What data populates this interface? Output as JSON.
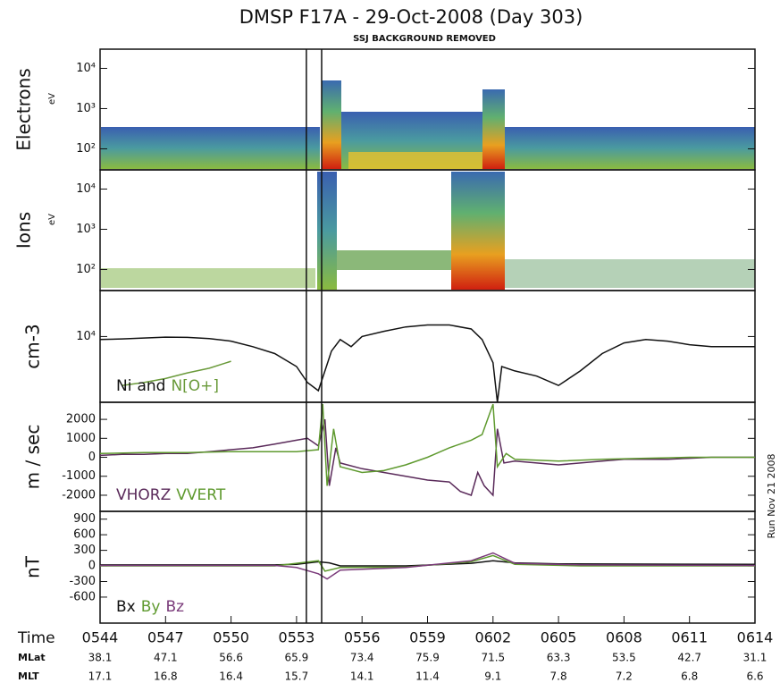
{
  "chart_data": {
    "type": "panels",
    "title": "DMSP F17A - 29-Oct-2008 (Day 303)",
    "subtitle": "SSJ BACKGROUND REMOVED",
    "side_note": "Run Nov 21 2008",
    "xlim": [
      344,
      374
    ],
    "xticks": [
      {
        "value": 344,
        "label": "0544"
      },
      {
        "value": 347,
        "label": "0547"
      },
      {
        "value": 350,
        "label": "0550"
      },
      {
        "value": 353,
        "label": "0553"
      },
      {
        "value": 356,
        "label": "0556"
      },
      {
        "value": 359,
        "label": "0559"
      },
      {
        "value": 362,
        "label": "0602"
      },
      {
        "value": 365,
        "label": "0605"
      },
      {
        "value": 368,
        "label": "0608"
      },
      {
        "value": 371,
        "label": "0611"
      },
      {
        "value": 374,
        "label": "0614"
      }
    ],
    "row_labels": [
      "Time",
      "MLat",
      "MLT"
    ],
    "mlat": [
      "38.1",
      "47.1",
      "56.6",
      "65.9",
      "73.4",
      "75.9",
      "71.5",
      "63.3",
      "53.5",
      "42.7",
      "31.1"
    ],
    "mlt": [
      "17.1",
      "16.8",
      "16.4",
      "15.7",
      "14.1",
      "11.4",
      "9.1",
      "7.8",
      "7.2",
      "6.8",
      "6.6"
    ],
    "vlines": [
      353.45,
      354.15
    ],
    "panels": [
      {
        "type": "spectrogram",
        "ylabel": "Electrons",
        "unit": "eV",
        "log": true,
        "ylim": [
          30,
          30000
        ],
        "yticks": [
          {
            "value": 100,
            "label": "10²"
          },
          {
            "value": 1000,
            "label": "10³"
          },
          {
            "value": 10000,
            "label": "10⁴"
          }
        ]
      },
      {
        "type": "spectrogram",
        "ylabel": "Ions",
        "unit": "eV",
        "log": true,
        "ylim": [
          30,
          30000
        ],
        "yticks": [
          {
            "value": 100,
            "label": "10²"
          },
          {
            "value": 1000,
            "label": "10³"
          },
          {
            "value": 10000,
            "label": "10⁴"
          }
        ]
      },
      {
        "type": "line",
        "ylabel": "cm-3",
        "log": true,
        "ylim": [
          1000,
          50000
        ],
        "yticks": [
          {
            "value": 10000,
            "label": "10⁴"
          }
        ],
        "legend_joiner": "and",
        "series": [
          {
            "name": "Ni",
            "color": "#111111",
            "x": [
              344,
              345,
              346,
              347,
              348,
              349,
              350,
              351,
              352,
              353,
              353.5,
              354,
              354.3,
              354.6,
              355,
              355.5,
              356,
              357,
              358,
              359,
              360,
              361,
              361.5,
              362,
              362.2,
              362.4,
              363,
              364,
              365,
              366,
              367,
              368,
              369,
              370,
              371,
              372,
              373,
              374
            ],
            "values": [
              9000,
              9200,
              9500,
              9800,
              9700,
              9300,
              8500,
              7000,
              5500,
              3500,
              2000,
              1500,
              3000,
              6000,
              9000,
              7000,
              10000,
              12000,
              14000,
              15000,
              15000,
              13000,
              9000,
              4000,
              1000,
              3500,
              3000,
              2500,
              1800,
              3000,
              5500,
              8000,
              9000,
              8500,
              7500,
              7000,
              7000,
              7000
            ]
          },
          {
            "name": "N[O+]",
            "color": "#6a9a3a",
            "x": [
              345,
              346,
              347,
              348,
              349,
              350
            ],
            "values": [
              1800,
              2000,
              2300,
              2800,
              3300,
              4200
            ]
          }
        ]
      },
      {
        "type": "line",
        "ylabel": "m / sec",
        "log": false,
        "ylim": [
          -2850,
          2900
        ],
        "yticks": [
          -2000,
          -1000,
          0,
          1000,
          2000
        ],
        "series": [
          {
            "name": "VHORZ",
            "color": "#5a2a5a",
            "x": [
              344,
              345,
              346,
              347,
              348,
              349,
              350,
              351,
              352,
              353,
              353.5,
              354,
              354.3,
              354.5,
              354.8,
              355,
              356,
              357,
              358,
              359,
              360,
              360.5,
              361,
              361.3,
              361.6,
              362,
              362.2,
              362.5,
              363,
              364,
              365,
              366,
              367,
              368,
              369,
              370,
              371,
              372,
              373,
              374
            ],
            "values": [
              100,
              150,
              150,
              200,
              200,
              300,
              400,
              500,
              700,
              900,
              1000,
              600,
              2000,
              -1500,
              500,
              -300,
              -600,
              -800,
              -1000,
              -1200,
              -1300,
              -1800,
              -2000,
              -800,
              -1500,
              -2000,
              1500,
              -300,
              -200,
              -300,
              -400,
              -300,
              -200,
              -100,
              -100,
              -100,
              -50,
              0,
              0,
              0
            ]
          },
          {
            "name": "VVERT",
            "color": "#5f9a2f",
            "x": [
              344,
              346,
              348,
              350,
              352,
              353,
              354,
              354.2,
              354.4,
              354.7,
              355,
              356,
              357,
              358,
              359,
              360,
              361,
              361.5,
              362,
              362.2,
              362.6,
              363,
              365,
              367,
              369,
              371,
              374
            ],
            "values": [
              200,
              250,
              250,
              300,
              300,
              300,
              400,
              2800,
              -1500,
              1500,
              -500,
              -800,
              -700,
              -400,
              0,
              500,
              900,
              1200,
              2800,
              -500,
              200,
              -100,
              -200,
              -100,
              -50,
              0,
              0
            ]
          }
        ]
      },
      {
        "type": "line",
        "ylabel": "nT",
        "log": false,
        "ylim": [
          -1100,
          1050
        ],
        "yticks": [
          -600,
          -300,
          0,
          300,
          600,
          900
        ],
        "series": [
          {
            "name": "Bx",
            "color": "#111111",
            "x": [
              344,
              348,
              352,
              353,
              354,
              354.5,
              355,
              358,
              361,
              362,
              363,
              365,
              374
            ],
            "values": [
              20,
              20,
              20,
              30,
              80,
              60,
              0,
              0,
              50,
              100,
              60,
              40,
              30
            ]
          },
          {
            "name": "By",
            "color": "#5f9a2f",
            "x": [
              344,
              352,
              353,
              354,
              354.3,
              355,
              358,
              361,
              362,
              363,
              366,
              374
            ],
            "values": [
              0,
              0,
              50,
              100,
              -100,
              -30,
              -20,
              80,
              200,
              30,
              0,
              0
            ]
          },
          {
            "name": "Bz",
            "color": "#7a3a7a",
            "x": [
              344,
              352,
              353,
              354,
              354.4,
              355,
              358,
              361,
              362,
              363,
              366,
              374
            ],
            "values": [
              10,
              10,
              -30,
              -150,
              -250,
              -80,
              -30,
              100,
              250,
              50,
              20,
              10
            ]
          }
        ]
      }
    ]
  }
}
